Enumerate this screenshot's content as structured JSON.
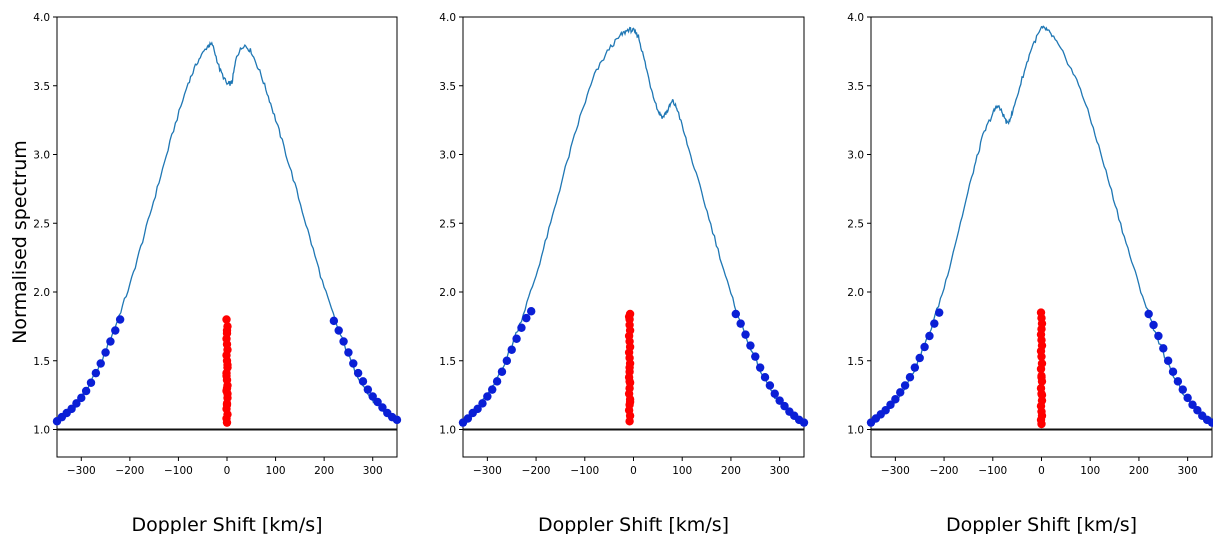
{
  "figure": {
    "ylabel": "Normalised spectrum"
  },
  "chart_data": [
    {
      "type": "line",
      "xlabel": "Doppler Shift [km/s]",
      "xlim": [
        -350,
        350
      ],
      "ylim": [
        0.8,
        4.0
      ],
      "xticks": [
        -300,
        -200,
        -100,
        0,
        100,
        200,
        300
      ],
      "yticks": [
        1.0,
        1.5,
        2.0,
        2.5,
        3.0,
        3.5,
        4.0
      ],
      "ytick_labels": [
        "1.0",
        "1.5",
        "2.0",
        "2.5",
        "3.0",
        "3.5",
        "4.0"
      ],
      "grid": false,
      "baseline": 1.0,
      "line_color": "#1f77b4",
      "line_shape": {
        "x": [
          -350,
          -320,
          -290,
          -260,
          -230,
          -200,
          -170,
          -140,
          -110,
          -80,
          -60,
          -40,
          -30,
          -15,
          0,
          10,
          20,
          35,
          50,
          70,
          90,
          110,
          140,
          170,
          200,
          230,
          260,
          290,
          320,
          350
        ],
        "y": [
          1.05,
          1.14,
          1.28,
          1.48,
          1.75,
          2.05,
          2.42,
          2.8,
          3.18,
          3.52,
          3.68,
          3.79,
          3.8,
          3.62,
          3.51,
          3.52,
          3.72,
          3.8,
          3.75,
          3.58,
          3.37,
          3.14,
          2.78,
          2.4,
          2.03,
          1.72,
          1.45,
          1.26,
          1.13,
          1.06
        ]
      },
      "blue_points": {
        "color": "#0a1fd6",
        "left": {
          "x": [
            -350,
            -340,
            -330,
            -320,
            -310,
            -300,
            -290,
            -280,
            -270,
            -260,
            -250,
            -240,
            -230,
            -220
          ],
          "y": [
            1.06,
            1.09,
            1.12,
            1.15,
            1.19,
            1.23,
            1.28,
            1.34,
            1.41,
            1.48,
            1.56,
            1.64,
            1.72,
            1.8
          ]
        },
        "right": {
          "x": [
            220,
            230,
            240,
            250,
            260,
            270,
            280,
            290,
            300,
            310,
            320,
            330,
            340,
            350
          ],
          "y": [
            1.79,
            1.72,
            1.64,
            1.56,
            1.48,
            1.41,
            1.35,
            1.29,
            1.24,
            1.2,
            1.16,
            1.12,
            1.09,
            1.07
          ]
        }
      },
      "red_points": {
        "color": "#ff0000",
        "x": [
          0,
          -1,
          1,
          -1,
          0,
          1,
          -1,
          1,
          0,
          -1,
          1,
          0,
          -1,
          1,
          0,
          -1,
          0,
          1,
          -1,
          0,
          1,
          0,
          -1,
          1,
          0
        ],
        "y": [
          1.05,
          1.08,
          1.11,
          1.15,
          1.19,
          1.23,
          1.28,
          1.32,
          1.36,
          1.41,
          1.45,
          1.5,
          1.54,
          1.58,
          1.62,
          1.66,
          1.7,
          1.75,
          1.8,
          1.72,
          1.26,
          1.18,
          1.39,
          1.47,
          1.3
        ]
      }
    },
    {
      "type": "line",
      "xlabel": "Doppler Shift [km/s]",
      "xlim": [
        -350,
        350
      ],
      "ylim": [
        0.8,
        4.0
      ],
      "xticks": [
        -300,
        -200,
        -100,
        0,
        100,
        200,
        300
      ],
      "yticks": [
        1.0,
        1.5,
        2.0,
        2.5,
        3.0,
        3.5,
        4.0
      ],
      "ytick_labels": [
        "1.0",
        "1.5",
        "2.0",
        "2.5",
        "3.0",
        "3.5",
        "4.0"
      ],
      "grid": false,
      "baseline": 1.0,
      "line_color": "#1f77b4",
      "line_shape": {
        "x": [
          -350,
          -320,
          -290,
          -260,
          -230,
          -200,
          -170,
          -140,
          -110,
          -80,
          -50,
          -25,
          -10,
          0,
          10,
          20,
          35,
          50,
          60,
          70,
          80,
          90,
          110,
          140,
          170,
          200,
          230,
          260,
          290,
          320,
          350
        ],
        "y": [
          1.05,
          1.15,
          1.3,
          1.52,
          1.8,
          2.12,
          2.5,
          2.9,
          3.27,
          3.58,
          3.77,
          3.87,
          3.91,
          3.9,
          3.86,
          3.72,
          3.5,
          3.32,
          3.27,
          3.32,
          3.39,
          3.33,
          3.08,
          2.72,
          2.35,
          1.98,
          1.68,
          1.43,
          1.24,
          1.12,
          1.05
        ]
      },
      "blue_points": {
        "color": "#0a1fd6",
        "left": {
          "x": [
            -350,
            -340,
            -330,
            -320,
            -310,
            -300,
            -290,
            -280,
            -270,
            -260,
            -250,
            -240,
            -230,
            -220,
            -210
          ],
          "y": [
            1.05,
            1.08,
            1.12,
            1.15,
            1.19,
            1.24,
            1.29,
            1.35,
            1.42,
            1.5,
            1.58,
            1.66,
            1.74,
            1.81,
            1.86
          ]
        },
        "right": {
          "x": [
            210,
            220,
            230,
            240,
            250,
            260,
            270,
            280,
            290,
            300,
            310,
            320,
            330,
            340,
            350
          ],
          "y": [
            1.84,
            1.77,
            1.69,
            1.61,
            1.53,
            1.45,
            1.38,
            1.32,
            1.26,
            1.21,
            1.17,
            1.13,
            1.1,
            1.07,
            1.05
          ]
        }
      },
      "red_points": {
        "color": "#ff0000",
        "x": [
          -8,
          -7,
          -9,
          -8,
          -7,
          -9,
          -8,
          -7,
          -9,
          -8,
          -7,
          -8,
          -9,
          -7,
          -8,
          -9,
          -7,
          -8,
          -8,
          -7,
          -9,
          -8,
          -7,
          -8
        ],
        "y": [
          1.06,
          1.1,
          1.14,
          1.18,
          1.22,
          1.26,
          1.3,
          1.34,
          1.38,
          1.42,
          1.48,
          1.52,
          1.56,
          1.6,
          1.64,
          1.68,
          1.72,
          1.76,
          1.8,
          1.84,
          1.82,
          1.45,
          1.2,
          1.35
        ]
      }
    },
    {
      "type": "line",
      "xlabel": "Doppler Shift [km/s]",
      "xlim": [
        -350,
        350
      ],
      "ylim": [
        0.8,
        4.0
      ],
      "xticks": [
        -300,
        -200,
        -100,
        0,
        100,
        200,
        300
      ],
      "yticks": [
        1.0,
        1.5,
        2.0,
        2.5,
        3.0,
        3.5,
        4.0
      ],
      "ytick_labels": [
        "1.0",
        "1.5",
        "2.0",
        "2.5",
        "3.0",
        "3.5",
        "4.0"
      ],
      "grid": false,
      "baseline": 1.0,
      "line_color": "#1f77b4",
      "line_shape": {
        "x": [
          -350,
          -320,
          -290,
          -260,
          -230,
          -200,
          -170,
          -140,
          -120,
          -100,
          -90,
          -80,
          -70,
          -60,
          -40,
          -20,
          0,
          10,
          25,
          50,
          80,
          110,
          140,
          170,
          200,
          230,
          260,
          290,
          320,
          350
        ],
        "y": [
          1.06,
          1.13,
          1.25,
          1.44,
          1.7,
          2.03,
          2.45,
          2.88,
          3.14,
          3.3,
          3.36,
          3.3,
          3.22,
          3.3,
          3.55,
          3.78,
          3.92,
          3.91,
          3.85,
          3.7,
          3.48,
          3.15,
          2.78,
          2.4,
          2.05,
          1.74,
          1.47,
          1.27,
          1.14,
          1.06
        ]
      },
      "blue_points": {
        "color": "#0a1fd6",
        "left": {
          "x": [
            -350,
            -340,
            -330,
            -320,
            -310,
            -300,
            -290,
            -280,
            -270,
            -260,
            -250,
            -240,
            -230,
            -220,
            -210
          ],
          "y": [
            1.05,
            1.08,
            1.11,
            1.14,
            1.18,
            1.22,
            1.27,
            1.32,
            1.38,
            1.45,
            1.52,
            1.6,
            1.68,
            1.77,
            1.85
          ]
        },
        "right": {
          "x": [
            220,
            230,
            240,
            250,
            260,
            270,
            280,
            290,
            300,
            310,
            320,
            330,
            340,
            350
          ],
          "y": [
            1.84,
            1.76,
            1.68,
            1.59,
            1.5,
            1.42,
            1.35,
            1.29,
            1.23,
            1.18,
            1.14,
            1.1,
            1.07,
            1.05
          ]
        }
      },
      "red_points": {
        "color": "#ff0000",
        "x": [
          0,
          -1,
          1,
          0,
          -1,
          1,
          0,
          -1,
          1,
          0,
          -1,
          1,
          0,
          -1,
          1,
          0,
          -1,
          0,
          1,
          0,
          -1,
          1,
          0
        ],
        "y": [
          1.04,
          1.07,
          1.1,
          1.13,
          1.17,
          1.21,
          1.26,
          1.3,
          1.35,
          1.39,
          1.44,
          1.48,
          1.53,
          1.57,
          1.61,
          1.65,
          1.69,
          1.73,
          1.77,
          1.81,
          1.85,
          1.25,
          1.38
        ]
      }
    }
  ]
}
